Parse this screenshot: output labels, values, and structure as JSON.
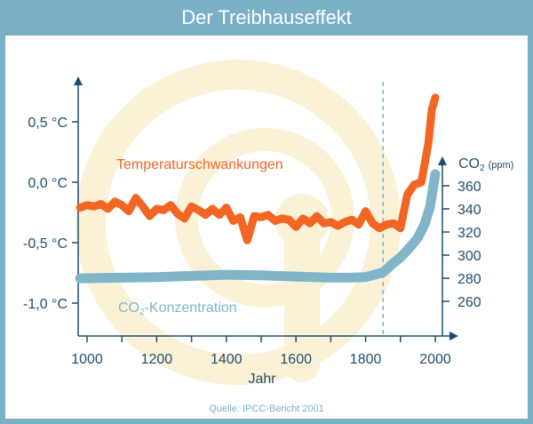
{
  "title": "Der Treibhauseffekt",
  "source": "Quelle: IPCC-Bericht 2001",
  "colors": {
    "frame": "#79b0c7",
    "temperature": "#f26522",
    "co2": "#7fb4c9",
    "axis": "#1f4e6e",
    "watermark": "#fbf1d6"
  },
  "chart_data": {
    "type": "line",
    "xlabel": "Jahr",
    "x_ticks": [
      1000,
      1200,
      1400,
      1600,
      1800,
      2000
    ],
    "xlim": [
      980,
      2010
    ],
    "y_left": {
      "ticks": [
        "0,5 °C",
        "0,0 °C",
        "-0,5 °C",
        "-1,0 °C"
      ],
      "tick_values": [
        0.5,
        0.0,
        -0.5,
        -1.0
      ],
      "ylim": [
        -1.3,
        0.95
      ]
    },
    "y_right": {
      "label": "CO₂ (ppm)",
      "label_main": "CO",
      "label_sub": "2",
      "label_unit": "(ppm)",
      "ticks": [
        "360",
        "340",
        "320",
        "300",
        "280",
        "260"
      ],
      "tick_values": [
        360,
        340,
        320,
        300,
        280,
        260
      ]
    },
    "marker_year": 1850,
    "series": [
      {
        "name": "Temperaturschwankungen",
        "axis": "left",
        "x": [
          980,
          1000,
          1020,
          1040,
          1060,
          1080,
          1100,
          1120,
          1140,
          1160,
          1180,
          1200,
          1220,
          1240,
          1260,
          1280,
          1300,
          1320,
          1340,
          1360,
          1380,
          1400,
          1420,
          1440,
          1460,
          1480,
          1500,
          1520,
          1540,
          1560,
          1580,
          1600,
          1620,
          1640,
          1660,
          1680,
          1700,
          1720,
          1740,
          1760,
          1780,
          1800,
          1820,
          1840,
          1860,
          1880,
          1900,
          1920,
          1940,
          1960,
          1980,
          1990,
          2000
        ],
        "values": [
          -0.21,
          -0.19,
          -0.2,
          -0.18,
          -0.22,
          -0.16,
          -0.19,
          -0.24,
          -0.13,
          -0.2,
          -0.28,
          -0.22,
          -0.23,
          -0.19,
          -0.26,
          -0.3,
          -0.2,
          -0.23,
          -0.27,
          -0.22,
          -0.27,
          -0.21,
          -0.32,
          -0.29,
          -0.48,
          -0.28,
          -0.29,
          -0.27,
          -0.32,
          -0.3,
          -0.31,
          -0.37,
          -0.3,
          -0.34,
          -0.28,
          -0.34,
          -0.33,
          -0.36,
          -0.33,
          -0.31,
          -0.35,
          -0.24,
          -0.34,
          -0.38,
          -0.35,
          -0.34,
          -0.38,
          -0.1,
          -0.02,
          0.0,
          0.32,
          0.6,
          0.7
        ]
      },
      {
        "name": "CO₂-Konzentration",
        "label_main": "CO",
        "label_sub": "2",
        "label_rest": "-Konzentration",
        "axis": "right",
        "x": [
          980,
          1000,
          1100,
          1200,
          1300,
          1400,
          1500,
          1600,
          1700,
          1750,
          1800,
          1850,
          1875,
          1900,
          1925,
          1950,
          1970,
          1985,
          2000
        ],
        "values": [
          280,
          280,
          280.5,
          281,
          282,
          283,
          282.5,
          281.5,
          280.5,
          280.5,
          281,
          285,
          292,
          298,
          306,
          315,
          327,
          342,
          370
        ]
      }
    ]
  }
}
